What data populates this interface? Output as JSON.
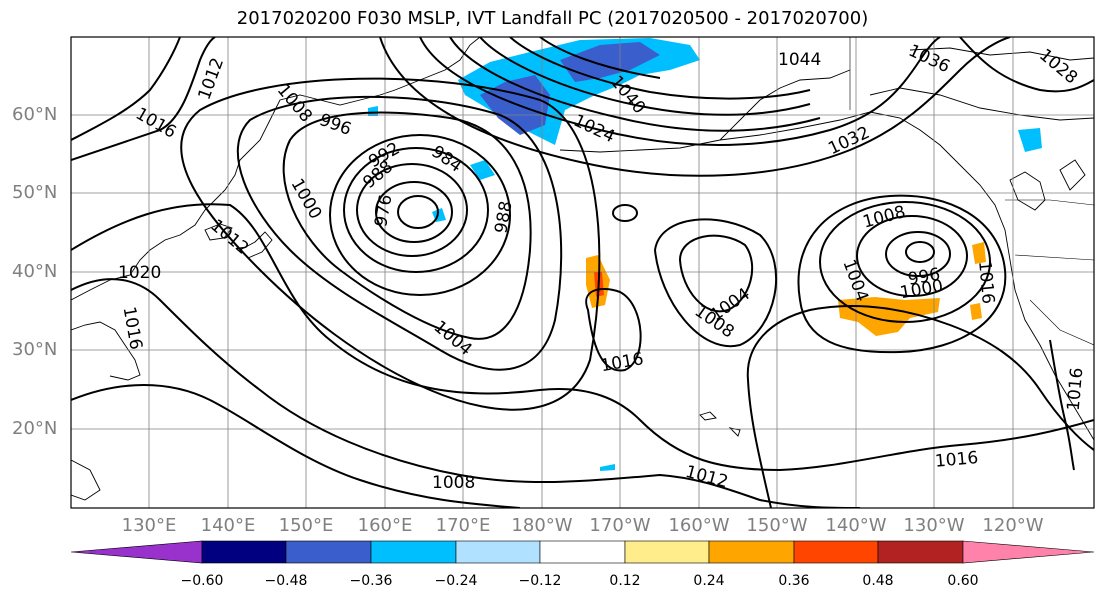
{
  "title": "2017020200 F030 MSLP, IVT Landfall PC (2017020500 - 2017020700)",
  "lat_labels": [
    "60°N",
    "50°N",
    "40°N",
    "30°N",
    "20°N"
  ],
  "lon_labels": [
    "130°E",
    "140°E",
    "150°E",
    "160°E",
    "170°E",
    "180°W",
    "170°W",
    "160°W",
    "150°W",
    "140°W",
    "130°W",
    "120°W"
  ],
  "colorbar": {
    "ticks": [
      "−0.60",
      "−0.48",
      "−0.36",
      "−0.24",
      "−0.12",
      "0.12",
      "0.24",
      "0.36",
      "0.48",
      "0.60"
    ],
    "colors": [
      "#9932cc",
      "#000080",
      "#3a5fcd",
      "#00bfff",
      "#b0e2ff",
      "#ffffff",
      "#ffec8b",
      "#ffa500",
      "#ff4500",
      "#b22222",
      "#ff82ab"
    ]
  },
  "contour_labels": [
    "1012",
    "1016",
    "1008",
    "996",
    "992",
    "988",
    "984",
    "976",
    "988",
    "1000",
    "1012",
    "1020",
    "1024",
    "1032",
    "1040",
    "1044",
    "1036",
    "1028",
    "1008",
    "1004",
    "1000",
    "996",
    "1016",
    "1004",
    "1008",
    "1016",
    "1008",
    "1012",
    "1016",
    "1016",
    "1016",
    "1004"
  ],
  "colors": {
    "contour": "#000000",
    "grid": "#808080",
    "coast": "#000000"
  }
}
